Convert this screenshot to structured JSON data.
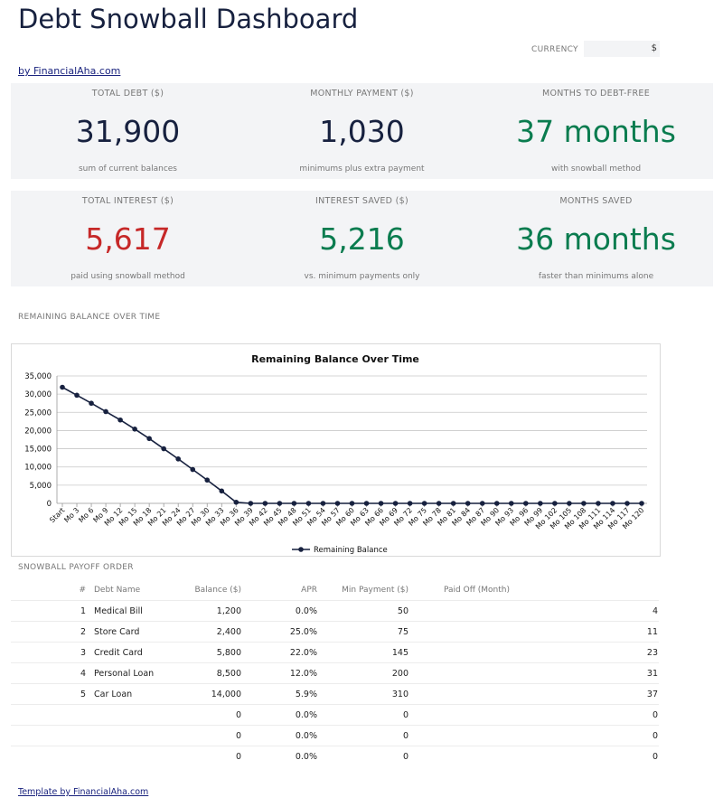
{
  "header": {
    "title": "Debt Snowball Dashboard",
    "byline": "by FinancialAha.com",
    "currency_label": "CURRENCY",
    "currency_value": "$"
  },
  "kpis": [
    {
      "label": "TOTAL DEBT ($)",
      "value": "31,900",
      "sub": "sum of current balances",
      "color": "#17213f"
    },
    {
      "label": "MONTHLY PAYMENT ($)",
      "value": "1,030",
      "sub": "minimums plus extra payment",
      "color": "#17213f"
    },
    {
      "label": "MONTHS TO DEBT-FREE",
      "value": "37 months",
      "sub": "with snowball method",
      "color": "#0a7c4f"
    },
    {
      "label": "TOTAL INTEREST ($)",
      "value": "5,617",
      "sub": "paid using snowball method",
      "color": "#c62828"
    },
    {
      "label": "INTEREST SAVED ($)",
      "value": "5,216",
      "sub": "vs. minimum payments only",
      "color": "#0a7c4f"
    },
    {
      "label": "MONTHS SAVED",
      "value": "36 months",
      "sub": "faster than minimums alone",
      "color": "#0a7c4f"
    }
  ],
  "sections": {
    "chart_label": "REMAINING BALANCE OVER TIME",
    "table_label": "SNOWBALL PAYOFF ORDER"
  },
  "chart_data": {
    "type": "line",
    "title": "Remaining Balance Over Time",
    "xlabel": "",
    "ylabel": "",
    "ylim": [
      0,
      35000
    ],
    "yticks": [
      "0",
      "5,000",
      "10,000",
      "15,000",
      "20,000",
      "25,000",
      "30,000",
      "35,000"
    ],
    "categories": [
      "Start",
      "Mo 3",
      "Mo 6",
      "Mo 9",
      "Mo 12",
      "Mo 15",
      "Mo 18",
      "Mo 21",
      "Mo 24",
      "Mo 27",
      "Mo 30",
      "Mo 33",
      "Mo 36",
      "Mo 39",
      "Mo 42",
      "Mo 45",
      "Mo 48",
      "Mo 51",
      "Mo 54",
      "Mo 57",
      "Mo 60",
      "Mo 63",
      "Mo 66",
      "Mo 69",
      "Mo 72",
      "Mo 75",
      "Mo 78",
      "Mo 81",
      "Mo 84",
      "Mo 87",
      "Mo 90",
      "Mo 93",
      "Mo 96",
      "Mo 99",
      "Mo 102",
      "Mo 105",
      "Mo 108",
      "Mo 111",
      "Mo 114",
      "Mo 117",
      "Mo 120"
    ],
    "series": [
      {
        "name": "Remaining Balance",
        "color": "#17213f",
        "values": [
          31900,
          29700,
          27500,
          25200,
          22900,
          20400,
          17800,
          15000,
          12200,
          9300,
          6400,
          3400,
          300,
          0,
          0,
          0,
          0,
          0,
          0,
          0,
          0,
          0,
          0,
          0,
          0,
          0,
          0,
          0,
          0,
          0,
          0,
          0,
          0,
          0,
          0,
          0,
          0,
          0,
          0,
          0,
          0
        ]
      }
    ],
    "legend": "bottom",
    "grid": true
  },
  "table": {
    "columns": [
      "#",
      "Debt Name",
      "Balance ($)",
      "APR",
      "Min Payment ($)",
      "Paid Off (Month)"
    ],
    "rows": [
      {
        "n": "1",
        "name": "Medical Bill",
        "balance": "1,200",
        "apr": "0.0%",
        "min": "50",
        "paid": "4"
      },
      {
        "n": "2",
        "name": "Store Card",
        "balance": "2,400",
        "apr": "25.0%",
        "min": "75",
        "paid": "11"
      },
      {
        "n": "3",
        "name": "Credit Card",
        "balance": "5,800",
        "apr": "22.0%",
        "min": "145",
        "paid": "23"
      },
      {
        "n": "4",
        "name": "Personal Loan",
        "balance": "8,500",
        "apr": "12.0%",
        "min": "200",
        "paid": "31"
      },
      {
        "n": "5",
        "name": "Car Loan",
        "balance": "14,000",
        "apr": "5.9%",
        "min": "310",
        "paid": "37"
      },
      {
        "n": "",
        "name": "",
        "balance": "0",
        "apr": "0.0%",
        "min": "0",
        "paid": "0"
      },
      {
        "n": "",
        "name": "",
        "balance": "0",
        "apr": "0.0%",
        "min": "0",
        "paid": "0"
      },
      {
        "n": "",
        "name": "",
        "balance": "0",
        "apr": "0.0%",
        "min": "0",
        "paid": "0"
      }
    ]
  },
  "footer": {
    "link": "Template by FinancialAha.com"
  }
}
